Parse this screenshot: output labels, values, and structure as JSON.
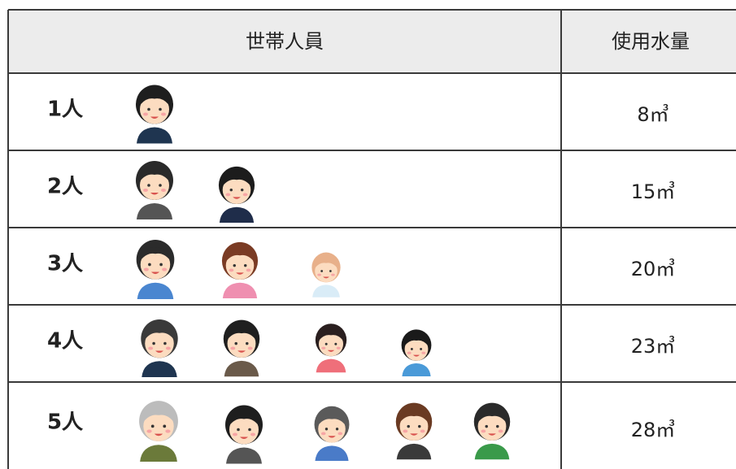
{
  "header": {
    "columns": [
      "世帯人員",
      "使用水量"
    ]
  },
  "rows": [
    {
      "people": "1人",
      "usage": "8㎥"
    },
    {
      "people": "2人",
      "usage": "15㎥"
    },
    {
      "people": "3人",
      "usage": "20㎥"
    },
    {
      "people": "4人",
      "usage": "23㎥"
    },
    {
      "people": "5人",
      "usage": "28㎥"
    }
  ]
}
